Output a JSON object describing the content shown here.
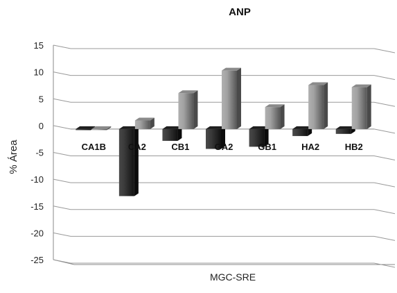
{
  "chart_data": {
    "type": "bar",
    "title": "ANP",
    "xlabel": "MGC-SRE",
    "ylabel": "% Área",
    "ylim": [
      -25,
      15
    ],
    "yticks": [
      "15",
      "10",
      "5",
      "0",
      "-5",
      "-10",
      "-15",
      "-20",
      "-25"
    ],
    "grid": true,
    "three_d": true,
    "categories": [
      "CA1B",
      "CA2",
      "CB1",
      "GA2",
      "GB1",
      "HA2",
      "HB2"
    ],
    "series": [
      {
        "color": "#2b2b2b",
        "values": [
          -0.2,
          -12.5,
          -2.2,
          -3.7,
          -3.3,
          -1.3,
          -0.9
        ]
      },
      {
        "color": "#9a9a9a",
        "values": [
          0.0,
          1.6,
          6.7,
          10.9,
          4.1,
          8.2,
          7.8
        ]
      }
    ]
  }
}
